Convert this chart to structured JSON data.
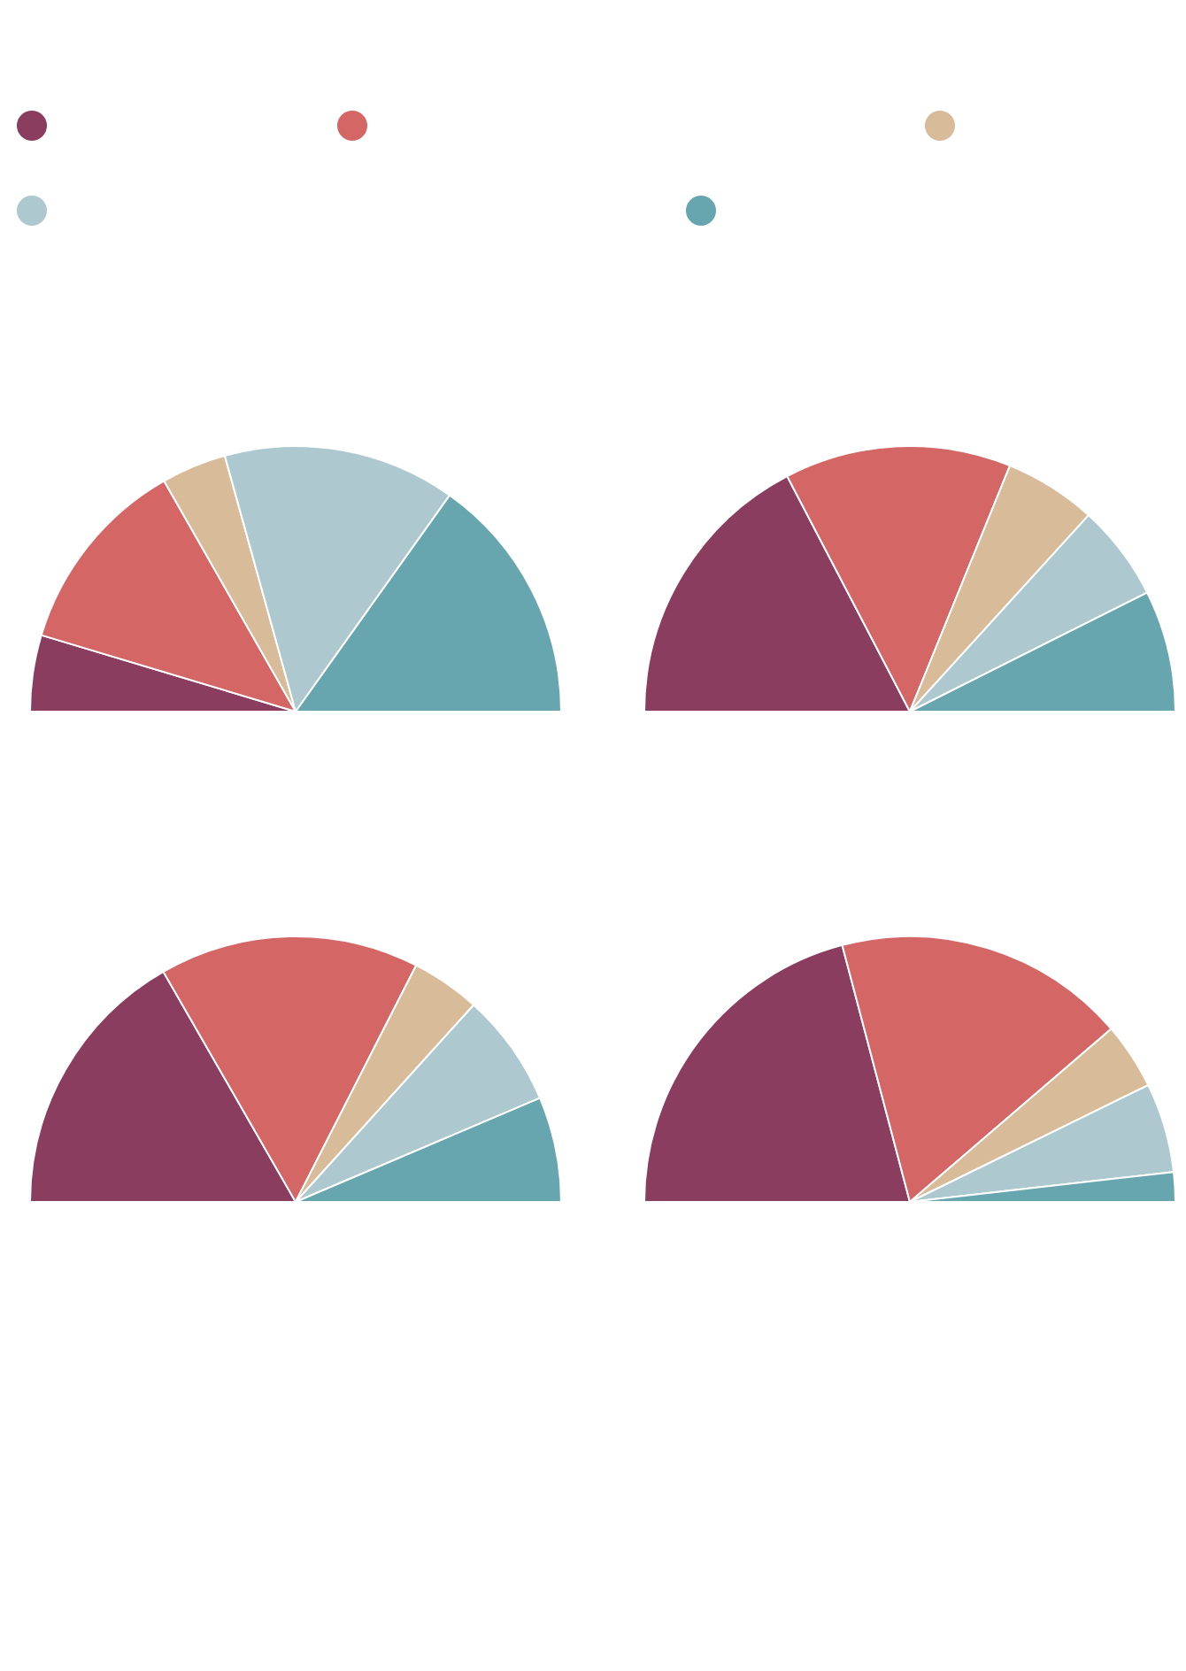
{
  "chart_data": [
    {
      "type": "pie",
      "categories": [
        null,
        null,
        null,
        null,
        null
      ],
      "values": [
        9.3,
        24.2,
        7.9,
        28.3,
        30.3
      ],
      "colors": [
        "#8a3d5f",
        "#d46766",
        "#d8bc9a",
        "#adc9cf",
        "#68a6af"
      ]
    },
    {
      "type": "pie",
      "categories": [
        null,
        null,
        null,
        null,
        null
      ],
      "values": [
        34.7,
        27.6,
        11.2,
        11.7,
        14.8
      ],
      "colors": [
        "#8a3d5f",
        "#d46766",
        "#d8bc9a",
        "#adc9cf",
        "#68a6af"
      ]
    },
    {
      "type": "pie",
      "categories": [
        null,
        null,
        null,
        null,
        null
      ],
      "values": [
        33.4,
        31.6,
        8.4,
        13.8,
        12.8
      ],
      "colors": [
        "#8a3d5f",
        "#d46766",
        "#d8bc9a",
        "#adc9cf",
        "#68a6af"
      ]
    },
    {
      "type": "pie",
      "categories": [
        null,
        null,
        null,
        null,
        null
      ],
      "values": [
        41.8,
        35.6,
        8.1,
        10.9,
        3.6
      ],
      "colors": [
        "#8a3d5f",
        "#d46766",
        "#d8bc9a",
        "#adc9cf",
        "#68a6af"
      ]
    }
  ]
}
